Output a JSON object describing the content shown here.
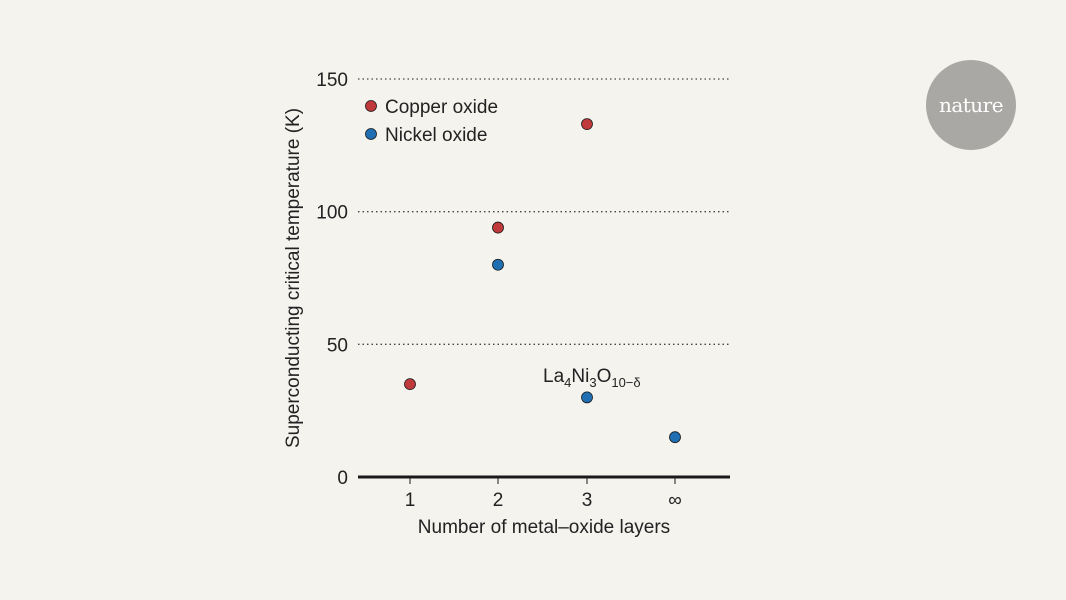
{
  "logo": {
    "text": "nature"
  },
  "colors": {
    "copper": "#c0393b",
    "nickel": "#1f6fb2",
    "axis": "#1a1a1a",
    "grid": "#444444"
  },
  "chart_data": {
    "type": "scatter",
    "xlabel": "Number of metal–oxide layers",
    "ylabel": "Superconducting critical temperature (K)",
    "categories": [
      "1",
      "2",
      "3",
      "∞"
    ],
    "yticks": [
      0,
      50,
      100,
      150
    ],
    "ylim": [
      0,
      150
    ],
    "grid": "horizontal dotted",
    "legend_position": "top-left",
    "series": [
      {
        "name": "Copper oxide",
        "color": "#c0393b",
        "points": [
          {
            "x": "1",
            "y": 35
          },
          {
            "x": "2",
            "y": 94
          },
          {
            "x": "3",
            "y": 133
          }
        ]
      },
      {
        "name": "Nickel oxide",
        "color": "#1f6fb2",
        "points": [
          {
            "x": "2",
            "y": 80
          },
          {
            "x": "3",
            "y": 30
          },
          {
            "x": "∞",
            "y": 15
          }
        ]
      }
    ],
    "annotation": {
      "parts": [
        "La",
        "4",
        "Ni",
        "3",
        "O",
        "10−δ"
      ],
      "x": "3",
      "y": 30
    }
  }
}
